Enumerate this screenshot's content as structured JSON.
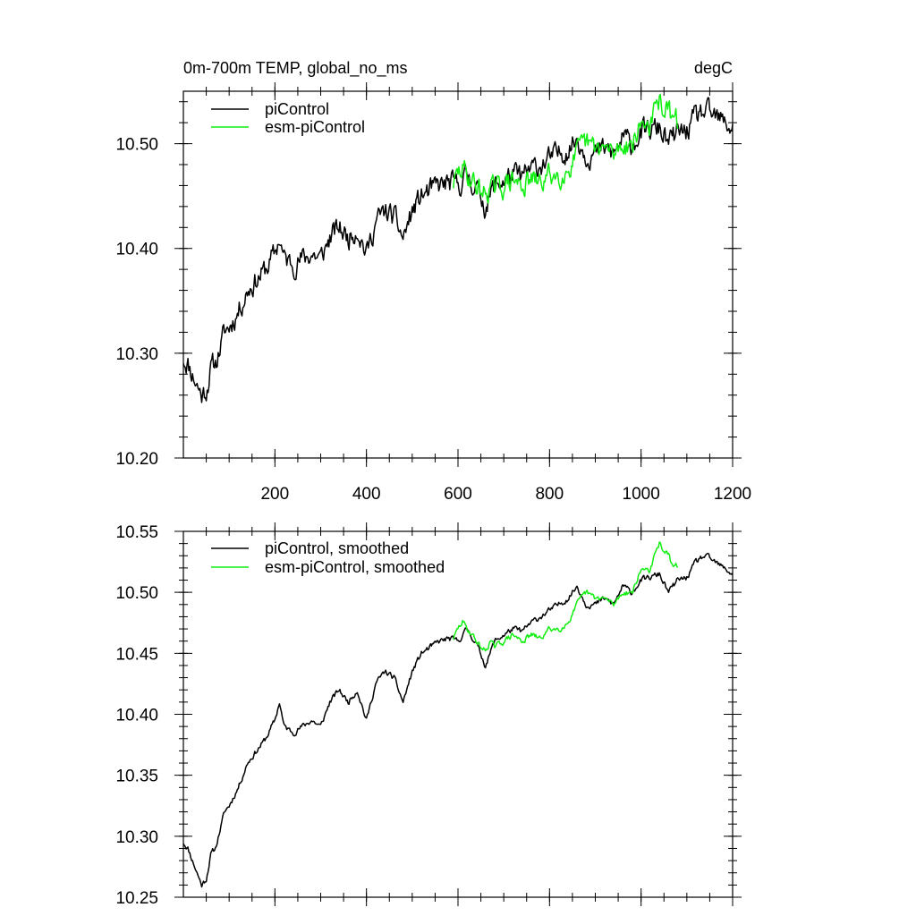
{
  "chart_data": [
    {
      "type": "line",
      "title_left": "0m-700m TEMP, global_no_ms",
      "title_right": "degC",
      "xlabel": "",
      "ylabel": "",
      "xlim": [
        0,
        1200
      ],
      "ylim": [
        10.2,
        10.55
      ],
      "xticks": [
        200,
        400,
        600,
        800,
        1000,
        1200
      ],
      "xtick_labels": [
        "200",
        "400",
        "600",
        "800",
        "1000",
        "1200"
      ],
      "yticks": [
        10.2,
        10.3,
        10.4,
        10.5
      ],
      "ytick_labels": [
        "10.20",
        "10.30",
        "10.40",
        "10.50"
      ],
      "legend_position": "top-left",
      "series": [
        {
          "name": "piControl",
          "color": "#000000",
          "noise": 0.009,
          "seed": 11,
          "x": [
            0,
            10,
            20,
            30,
            40,
            50,
            60,
            70,
            80,
            90,
            100,
            120,
            140,
            160,
            180,
            200,
            210,
            220,
            240,
            260,
            280,
            300,
            320,
            340,
            360,
            380,
            400,
            420,
            440,
            460,
            480,
            500,
            520,
            540,
            560,
            580,
            600,
            620,
            640,
            660,
            680,
            700,
            720,
            740,
            760,
            780,
            800,
            820,
            840,
            860,
            880,
            900,
            920,
            940,
            960,
            980,
            1000,
            1020,
            1040,
            1060,
            1080,
            1100,
            1120,
            1140,
            1160,
            1180,
            1200
          ],
          "y": [
            10.295,
            10.29,
            10.28,
            10.27,
            10.26,
            10.265,
            10.285,
            10.29,
            10.305,
            10.32,
            10.325,
            10.34,
            10.36,
            10.37,
            10.38,
            10.395,
            10.41,
            10.39,
            10.385,
            10.39,
            10.395,
            10.39,
            10.41,
            10.42,
            10.41,
            10.42,
            10.395,
            10.425,
            10.435,
            10.43,
            10.41,
            10.435,
            10.45,
            10.455,
            10.46,
            10.462,
            10.46,
            10.47,
            10.458,
            10.44,
            10.46,
            10.465,
            10.47,
            10.468,
            10.475,
            10.48,
            10.485,
            10.49,
            10.495,
            10.505,
            10.49,
            10.49,
            10.495,
            10.49,
            10.505,
            10.5,
            10.51,
            10.512,
            10.515,
            10.5,
            10.51,
            10.512,
            10.525,
            10.53,
            10.525,
            10.52,
            10.515
          ]
        },
        {
          "name": "esm-piControl",
          "color": "#11ee11",
          "noise": 0.009,
          "seed": 29,
          "x": [
            590,
            600,
            610,
            620,
            630,
            640,
            650,
            660,
            670,
            680,
            700,
            720,
            740,
            760,
            780,
            800,
            820,
            840,
            860,
            880,
            900,
            920,
            940,
            960,
            980,
            1000,
            1010,
            1020,
            1030,
            1040,
            1050,
            1060,
            1070,
            1080
          ],
          "y": [
            10.462,
            10.47,
            10.476,
            10.47,
            10.466,
            10.46,
            10.455,
            10.452,
            10.46,
            10.455,
            10.46,
            10.465,
            10.46,
            10.465,
            10.462,
            10.47,
            10.47,
            10.475,
            10.49,
            10.5,
            10.495,
            10.495,
            10.49,
            10.5,
            10.5,
            10.518,
            10.52,
            10.518,
            10.53,
            10.54,
            10.535,
            10.53,
            10.52,
            10.522
          ]
        }
      ]
    },
    {
      "type": "line",
      "title_left": "",
      "title_right": "",
      "xlabel": "",
      "ylabel": "",
      "xlim": [
        0,
        1200
      ],
      "ylim": [
        10.25,
        10.55
      ],
      "xticks": [
        200,
        400,
        600,
        800,
        1000,
        1200
      ],
      "xtick_labels": [],
      "yticks": [
        10.25,
        10.3,
        10.35,
        10.4,
        10.45,
        10.5,
        10.55
      ],
      "ytick_labels": [
        "10.25",
        "10.30",
        "10.35",
        "10.40",
        "10.45",
        "10.50",
        "10.55"
      ],
      "legend_position": "top-left",
      "series": [
        {
          "name": "piControl, smoothed",
          "color": "#000000",
          "noise": 0.002,
          "seed": 11,
          "x": [
            0,
            10,
            20,
            30,
            40,
            50,
            60,
            70,
            80,
            90,
            100,
            120,
            140,
            160,
            180,
            200,
            210,
            220,
            240,
            260,
            280,
            300,
            320,
            340,
            360,
            380,
            400,
            420,
            440,
            460,
            480,
            500,
            520,
            540,
            560,
            580,
            600,
            620,
            640,
            660,
            680,
            700,
            720,
            740,
            760,
            780,
            800,
            820,
            840,
            860,
            880,
            900,
            920,
            940,
            960,
            980,
            1000,
            1020,
            1040,
            1060,
            1080,
            1100,
            1120,
            1140,
            1160,
            1180,
            1200
          ],
          "y": [
            10.295,
            10.29,
            10.28,
            10.27,
            10.26,
            10.265,
            10.285,
            10.29,
            10.305,
            10.32,
            10.325,
            10.34,
            10.36,
            10.37,
            10.38,
            10.395,
            10.41,
            10.39,
            10.385,
            10.39,
            10.395,
            10.39,
            10.41,
            10.42,
            10.41,
            10.42,
            10.395,
            10.425,
            10.435,
            10.43,
            10.41,
            10.435,
            10.45,
            10.455,
            10.46,
            10.462,
            10.46,
            10.47,
            10.458,
            10.44,
            10.46,
            10.465,
            10.47,
            10.468,
            10.475,
            10.48,
            10.485,
            10.49,
            10.495,
            10.505,
            10.49,
            10.49,
            10.495,
            10.49,
            10.505,
            10.5,
            10.51,
            10.512,
            10.515,
            10.5,
            10.51,
            10.512,
            10.525,
            10.53,
            10.525,
            10.52,
            10.515
          ]
        },
        {
          "name": "esm-piControl, smoothed",
          "color": "#11ee11",
          "noise": 0.002,
          "seed": 29,
          "x": [
            590,
            600,
            610,
            620,
            630,
            640,
            650,
            660,
            670,
            680,
            700,
            720,
            740,
            760,
            780,
            800,
            820,
            840,
            860,
            880,
            900,
            920,
            940,
            960,
            980,
            1000,
            1010,
            1020,
            1030,
            1040,
            1050,
            1060,
            1070,
            1080
          ],
          "y": [
            10.462,
            10.47,
            10.476,
            10.47,
            10.466,
            10.46,
            10.455,
            10.452,
            10.46,
            10.455,
            10.46,
            10.465,
            10.46,
            10.465,
            10.462,
            10.47,
            10.47,
            10.475,
            10.49,
            10.5,
            10.495,
            10.495,
            10.49,
            10.5,
            10.5,
            10.518,
            10.52,
            10.518,
            10.53,
            10.54,
            10.535,
            10.53,
            10.52,
            10.522
          ]
        }
      ]
    }
  ]
}
